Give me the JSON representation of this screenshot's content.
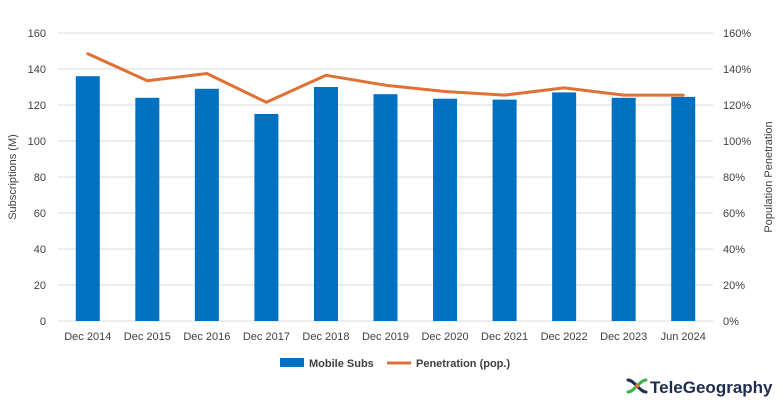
{
  "chart_data": {
    "type": "bar",
    "categories": [
      "Dec 2014",
      "Dec 2015",
      "Dec 2016",
      "Dec 2017",
      "Dec 2018",
      "Dec 2019",
      "Dec 2020",
      "Dec 2021",
      "Dec 2022",
      "Dec 2023",
      "Jun 2024"
    ],
    "series": [
      {
        "name": "Mobile Subs",
        "type": "bar",
        "axis": "left",
        "color": "#0070c0",
        "values": [
          136,
          124,
          129,
          115,
          130,
          126,
          123.5,
          123,
          127,
          124,
          124.5
        ]
      },
      {
        "name": "Penetration (pop.)",
        "type": "line",
        "axis": "right",
        "color": "#e07033",
        "values": [
          148.5,
          133.5,
          137.5,
          121.5,
          136.5,
          131,
          127.5,
          125.5,
          129.5,
          125.5,
          125.5
        ]
      }
    ],
    "ylabel": "Subscriptions (M)",
    "ylabel_right": "Population Penetration",
    "ylim": [
      0,
      160
    ],
    "ylim_right": [
      0,
      160
    ],
    "yticks": [
      "0",
      "20",
      "40",
      "60",
      "80",
      "100",
      "120",
      "140",
      "160"
    ],
    "yticks_right": [
      "0%",
      "20%",
      "40%",
      "60%",
      "80%",
      "100%",
      "120%",
      "140%",
      "160%"
    ],
    "grid": true,
    "legend_position": "bottom-center"
  },
  "branding": {
    "logo_text": "TeleGeography",
    "colors": [
      "#1e2d4f",
      "#3cb44b",
      "#e07033"
    ]
  },
  "colors": {
    "grid": "#d9d9d9",
    "axis_text": "#404040"
  }
}
